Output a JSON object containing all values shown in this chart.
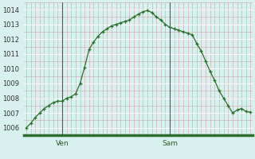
{
  "background_color": "#d8f0ee",
  "line_color": "#2d6e2d",
  "marker_color": "#2d6e2d",
  "ylim": [
    1005.5,
    1014.5
  ],
  "yticks": [
    1006,
    1007,
    1008,
    1009,
    1010,
    1011,
    1012,
    1013,
    1014
  ],
  "x_labels": [
    {
      "label": "Ven",
      "x": 8
    },
    {
      "label": "Sam",
      "x": 32
    }
  ],
  "values": [
    1006.0,
    1006.3,
    1006.7,
    1007.0,
    1007.3,
    1007.5,
    1007.7,
    1007.8,
    1007.8,
    1008.0,
    1008.1,
    1008.3,
    1009.0,
    1010.1,
    1011.3,
    1011.8,
    1012.2,
    1012.5,
    1012.7,
    1012.9,
    1013.0,
    1013.1,
    1013.2,
    1013.3,
    1013.5,
    1013.7,
    1013.85,
    1013.95,
    1013.8,
    1013.5,
    1013.3,
    1013.0,
    1012.8,
    1012.7,
    1012.6,
    1012.5,
    1012.4,
    1012.3,
    1011.7,
    1011.2,
    1010.5,
    1009.8,
    1009.2,
    1008.5,
    1008.0,
    1007.5,
    1007.0,
    1007.2,
    1007.3,
    1007.1,
    1007.05
  ],
  "n_points": 51,
  "grid_minor_color": "#c8a8a8",
  "grid_major_color": "#ffffff",
  "bottom_bar_color": "#2d6e2d",
  "sep_line_color": "#555566"
}
